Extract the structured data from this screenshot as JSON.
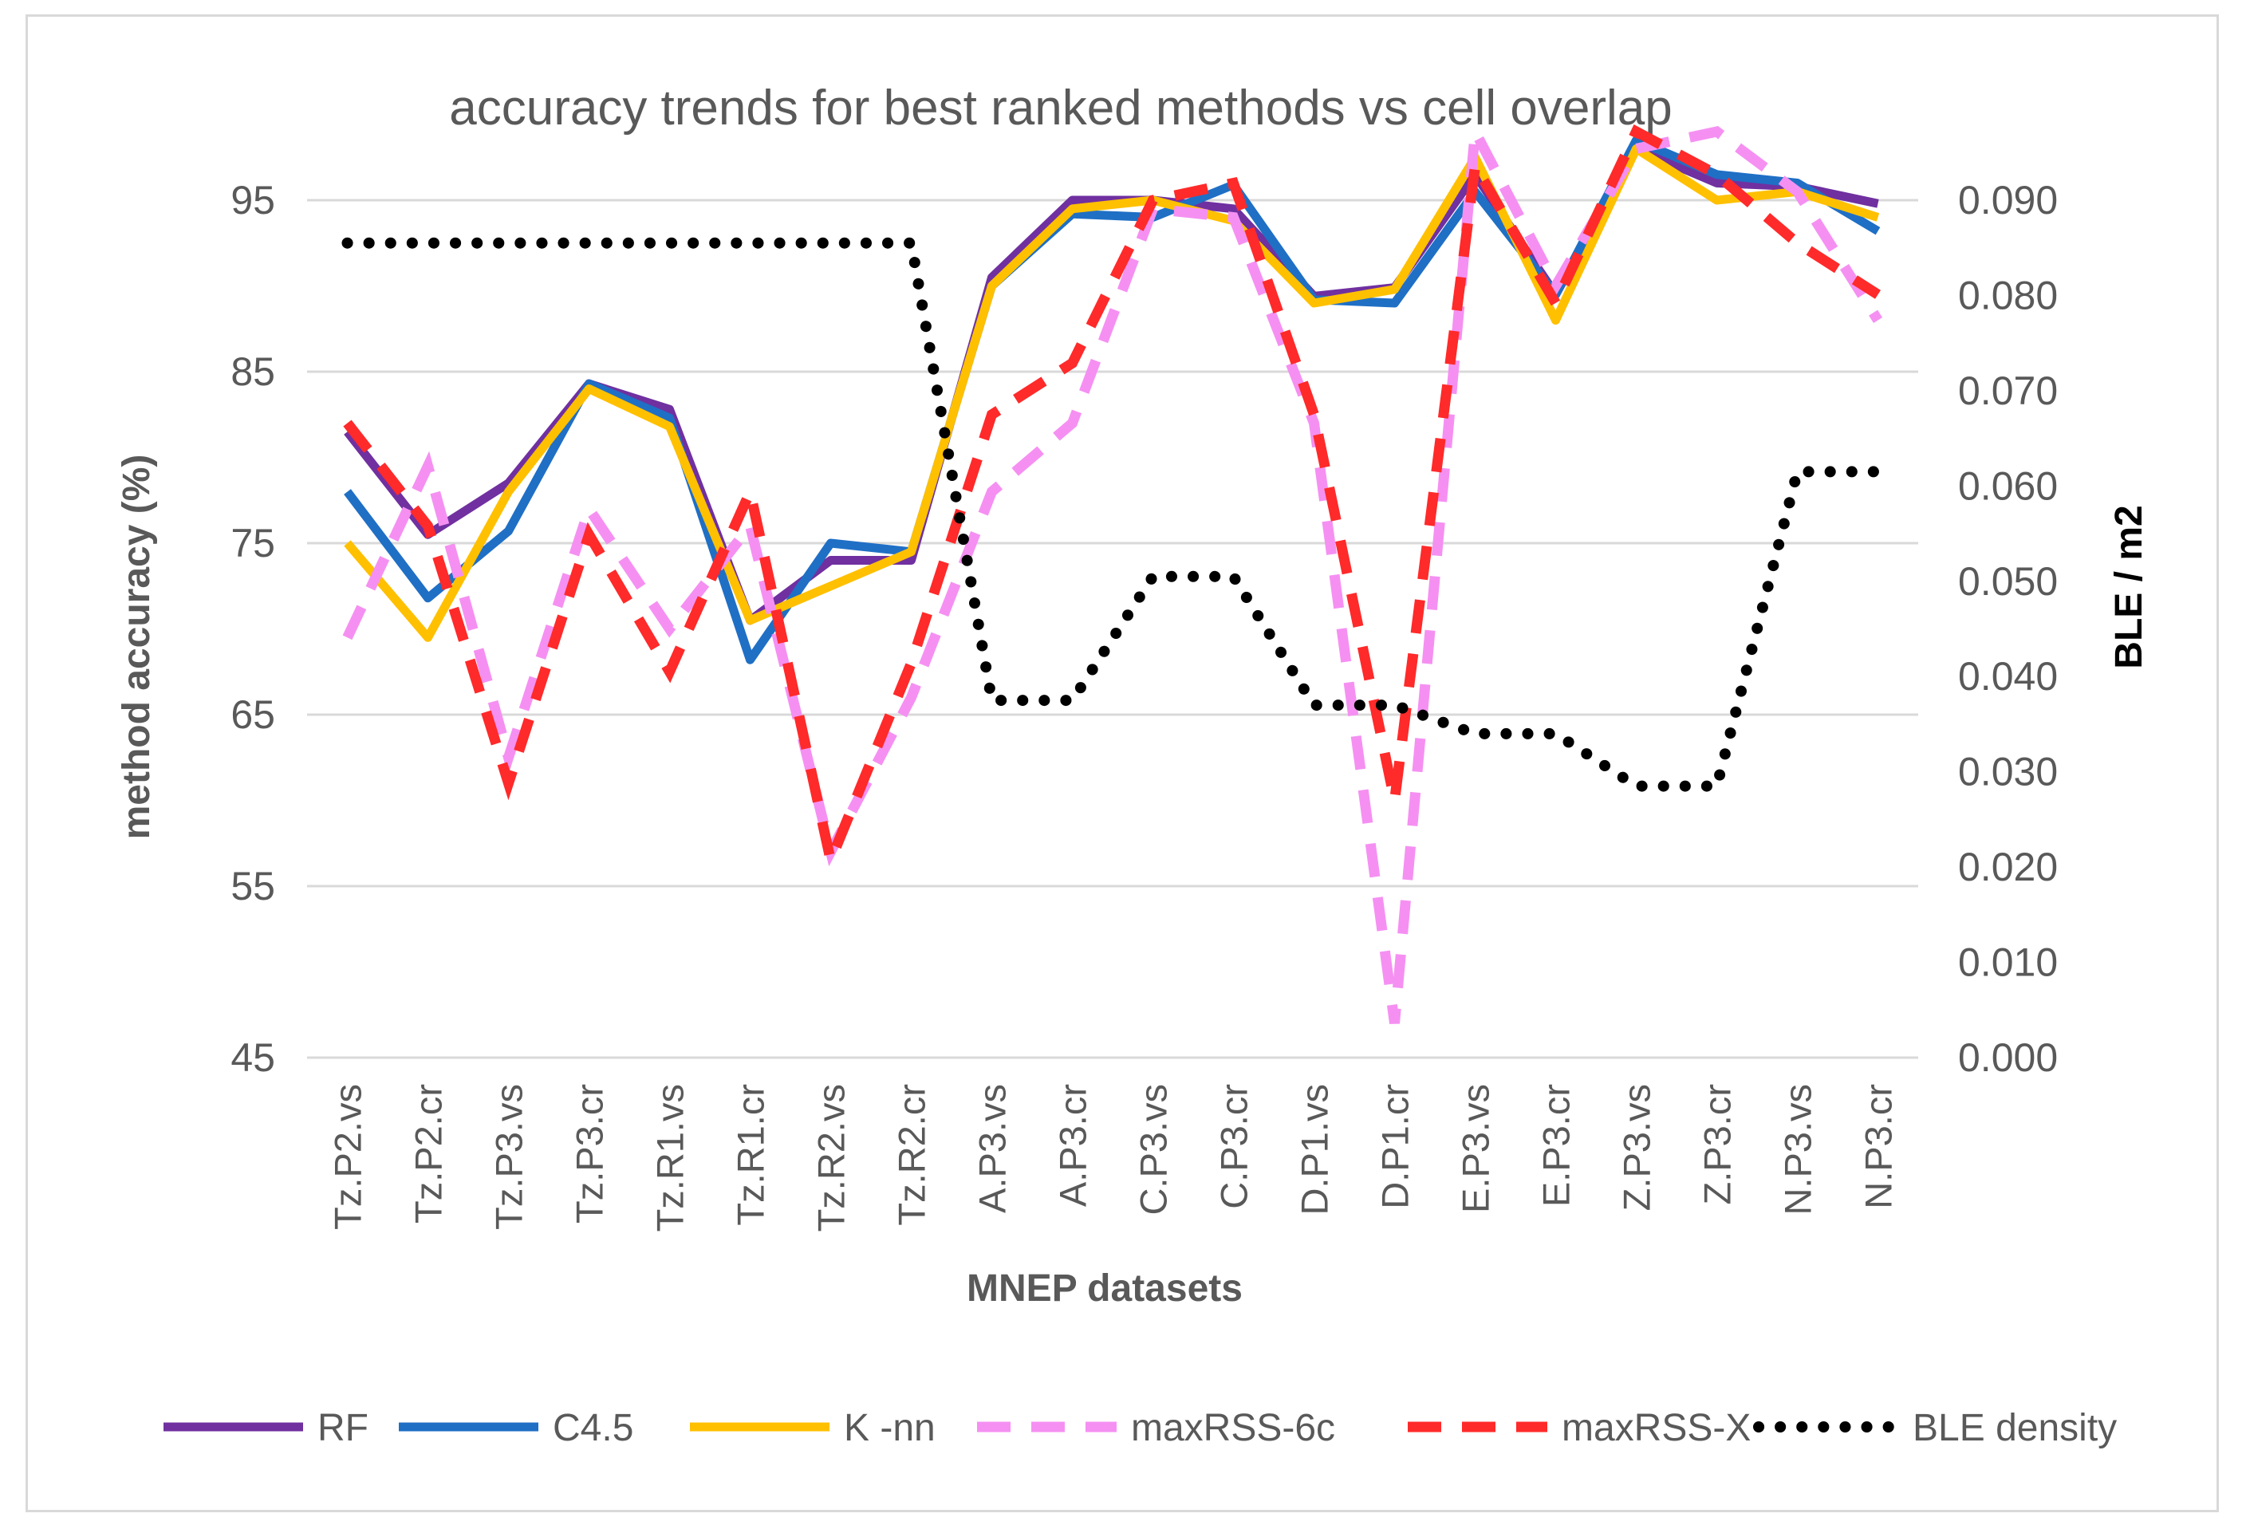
{
  "chart_data": {
    "type": "line",
    "title": "accuracy trends for best ranked methods vs cell overlap",
    "xlabel": "MNEP datasets",
    "ylabel": "method accuracy (%)",
    "y2label": "BLE / m2",
    "ylim": [
      45,
      95
    ],
    "yticks": [
      45,
      55,
      65,
      75,
      85,
      95
    ],
    "y2lim": [
      0.0,
      0.09
    ],
    "y2ticks": [
      "0.000",
      "0.010",
      "0.020",
      "0.030",
      "0.040",
      "0.050",
      "0.060",
      "0.070",
      "0.080",
      "0.090"
    ],
    "grid": true,
    "legend_position": "bottom",
    "categories": [
      "Tz.P2.vs",
      "Tz.P2.cr",
      "Tz.P3.vs",
      "Tz.P3.cr",
      "Tz.R1.vs",
      "Tz.R1.cr",
      "Tz.R2.vs",
      "Tz.R2.cr",
      "A.P3.vs",
      "A.P3.cr",
      "C.P3.vs",
      "C.P3.cr",
      "D.P1.vs",
      "D.P1.cr",
      "E.P3.vs",
      "E.P3.cr",
      "Z.P3.vs",
      "Z.P3.cr",
      "N.P3.vs",
      "N.P3.cr"
    ],
    "series": [
      {
        "name": "RF",
        "axis": "left",
        "style": "solid",
        "color": "#7030A0",
        "values": [
          81.5,
          75.5,
          78.5,
          84.3,
          82.8,
          70.5,
          74.0,
          74.0,
          90.5,
          95.0,
          95.0,
          94.5,
          89.4,
          89.9,
          96.5,
          89.5,
          98.0,
          96.0,
          95.8,
          94.8
        ]
      },
      {
        "name": "C4.5",
        "axis": "left",
        "style": "solid",
        "color": "#1F6FC5",
        "values": [
          78.0,
          71.8,
          75.7,
          84.3,
          82.3,
          68.2,
          75.0,
          74.5,
          90.0,
          94.2,
          94.0,
          95.9,
          89.2,
          89.0,
          95.5,
          89.5,
          98.5,
          96.5,
          96.0,
          93.2
        ]
      },
      {
        "name": "K -nn",
        "axis": "left",
        "style": "solid",
        "color": "#FFC000",
        "values": [
          75.0,
          69.5,
          78.0,
          84.0,
          81.8,
          70.5,
          72.5,
          74.5,
          90.0,
          94.5,
          95.0,
          93.8,
          89.0,
          89.8,
          97.5,
          88.0,
          98.0,
          95.0,
          95.5,
          94.0
        ]
      },
      {
        "name": "maxRSS-6c",
        "axis": "left",
        "style": "dashed",
        "color": "#F590F2",
        "values": [
          69.5,
          79.5,
          62.5,
          77.0,
          70.0,
          76.0,
          57.0,
          66.0,
          78.0,
          82.0,
          94.5,
          94.0,
          82.0,
          47.0,
          99.0,
          90.0,
          98.0,
          99.0,
          95.5,
          88.0
        ]
      },
      {
        "name": "maxRSS-X",
        "axis": "left",
        "style": "dashed",
        "color": "#FF2A2A",
        "values": [
          82.0,
          76.0,
          61.0,
          75.5,
          67.5,
          78.0,
          56.5,
          68.0,
          82.5,
          85.5,
          95.0,
          96.0,
          82.5,
          60.0,
          97.0,
          89.0,
          99.0,
          96.5,
          92.5,
          89.5
        ]
      },
      {
        "name": "BLE density",
        "axis": "right",
        "style": "dotted",
        "color": "#000000",
        "values": [
          0.0855,
          0.0855,
          0.0855,
          0.0855,
          0.0855,
          0.0855,
          0.0855,
          0.0855,
          0.0375,
          0.0375,
          0.0505,
          0.0505,
          0.037,
          0.037,
          0.034,
          0.034,
          0.0285,
          0.0285,
          0.0615,
          0.0615
        ]
      }
    ]
  }
}
